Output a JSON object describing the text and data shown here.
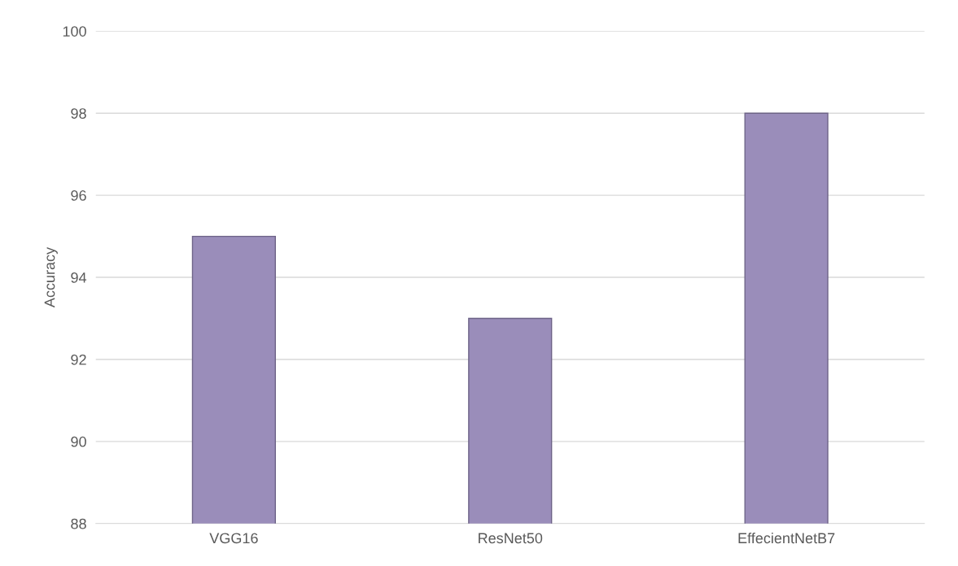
{
  "chart_data": {
    "type": "bar",
    "ylabel": "Accuracy",
    "categories": [
      "VGG16",
      "ResNet50",
      "EffecientNetB7"
    ],
    "values": [
      95,
      93,
      98
    ],
    "color": "#9a8dba",
    "ylim": [
      88,
      100
    ],
    "yticks": [
      88,
      90,
      92,
      94,
      96,
      98,
      100
    ],
    "grid": "y"
  }
}
